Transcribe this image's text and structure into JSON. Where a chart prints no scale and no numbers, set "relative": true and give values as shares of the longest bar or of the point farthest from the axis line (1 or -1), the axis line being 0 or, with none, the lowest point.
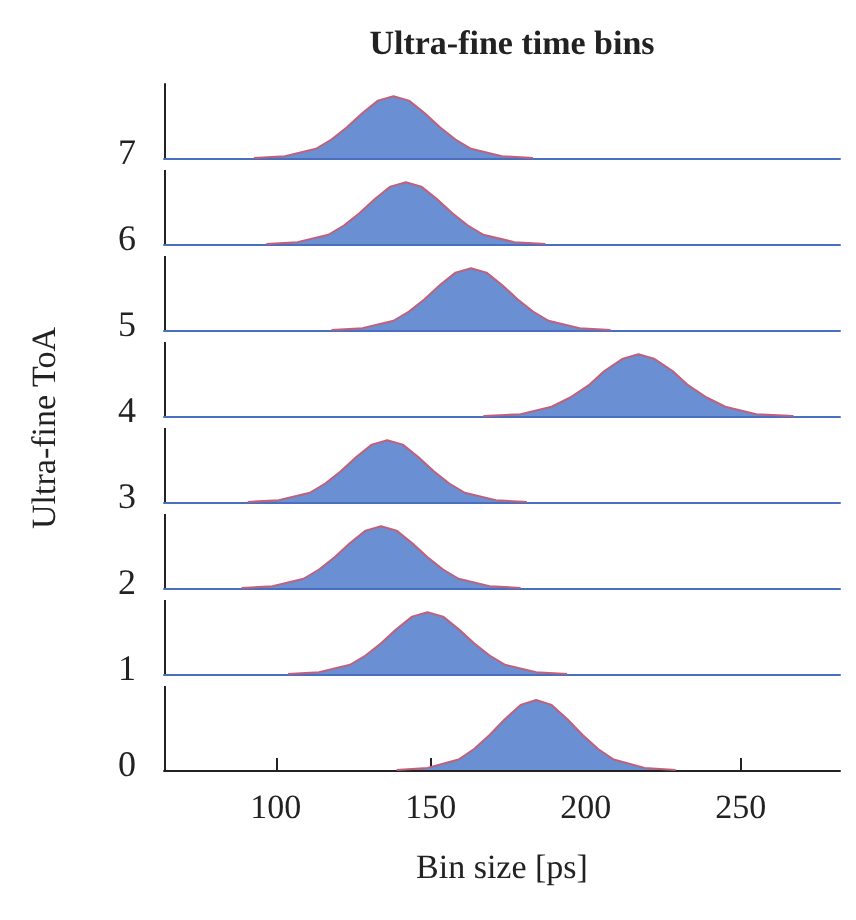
{
  "chart_data": [
    {
      "type": "area",
      "title": "Ultra-fine time bins",
      "ylabel": "7",
      "annotations": [
        "Ultra-fine ToA"
      ],
      "relative": true,
      "xlim": [
        64,
        282
      ],
      "tick_labels": false,
      "color": "#6a8fd3",
      "x": [
        93,
        103,
        113,
        118,
        123,
        128,
        133,
        138,
        143,
        148,
        153,
        158,
        163,
        173,
        183
      ],
      "values": [
        0,
        0.03,
        0.15,
        0.3,
        0.5,
        0.73,
        0.93,
        1,
        0.93,
        0.73,
        0.5,
        0.3,
        0.15,
        0.03,
        0
      ]
    },
    {
      "type": "area",
      "ylabel": "6",
      "relative": true,
      "xlim": [
        64,
        282
      ],
      "tick_labels": false,
      "color": "#6a8fd3",
      "x": [
        97,
        107,
        117,
        122,
        127,
        132,
        137,
        142,
        147,
        152,
        157,
        162,
        167,
        177,
        187
      ],
      "values": [
        0,
        0.03,
        0.15,
        0.3,
        0.5,
        0.73,
        0.93,
        1,
        0.93,
        0.73,
        0.5,
        0.3,
        0.15,
        0.03,
        0
      ]
    },
    {
      "type": "area",
      "ylabel": "5",
      "relative": true,
      "xlim": [
        64,
        282
      ],
      "tick_labels": false,
      "color": "#6a8fd3",
      "x": [
        118,
        128,
        138,
        143,
        148,
        153,
        158,
        163,
        168,
        173,
        178,
        183,
        188,
        198,
        208
      ],
      "values": [
        0,
        0.03,
        0.15,
        0.3,
        0.5,
        0.73,
        0.93,
        1,
        0.93,
        0.73,
        0.5,
        0.3,
        0.15,
        0.03,
        0
      ]
    },
    {
      "type": "area",
      "ylabel": "4",
      "relative": true,
      "xlim": [
        64,
        282
      ],
      "tick_labels": false,
      "color": "#6a8fd3",
      "x": [
        167,
        179,
        189,
        195,
        201,
        206,
        212,
        217,
        222,
        228,
        233,
        239,
        245,
        255,
        267
      ],
      "values": [
        0,
        0.03,
        0.15,
        0.3,
        0.5,
        0.73,
        0.93,
        1,
        0.93,
        0.73,
        0.5,
        0.3,
        0.15,
        0.03,
        0
      ]
    },
    {
      "type": "area",
      "ylabel": "3",
      "relative": true,
      "xlim": [
        64,
        282
      ],
      "tick_labels": false,
      "color": "#6a8fd3",
      "x": [
        91,
        101,
        111,
        116,
        121,
        126,
        131,
        136,
        141,
        146,
        151,
        156,
        161,
        171,
        181
      ],
      "values": [
        0,
        0.03,
        0.15,
        0.3,
        0.5,
        0.73,
        0.93,
        1,
        0.93,
        0.73,
        0.5,
        0.3,
        0.15,
        0.03,
        0
      ]
    },
    {
      "type": "area",
      "ylabel": "2",
      "relative": true,
      "xlim": [
        64,
        282
      ],
      "tick_labels": false,
      "color": "#6a8fd3",
      "x": [
        89,
        99,
        109,
        114,
        119,
        124,
        129,
        134,
        139,
        144,
        149,
        154,
        159,
        169,
        179
      ],
      "values": [
        0,
        0.03,
        0.15,
        0.3,
        0.5,
        0.73,
        0.93,
        1,
        0.93,
        0.73,
        0.5,
        0.3,
        0.15,
        0.03,
        0
      ]
    },
    {
      "type": "area",
      "ylabel": "1",
      "relative": true,
      "xlim": [
        64,
        282
      ],
      "tick_labels": false,
      "color": "#6a8fd3",
      "x": [
        104,
        114,
        124,
        129,
        134,
        139,
        144,
        149,
        154,
        159,
        164,
        169,
        174,
        184,
        194
      ],
      "values": [
        0,
        0.03,
        0.15,
        0.3,
        0.5,
        0.73,
        0.93,
        1,
        0.93,
        0.73,
        0.5,
        0.3,
        0.15,
        0.03,
        0
      ]
    },
    {
      "type": "area",
      "ylabel": "0",
      "xlabel": "Bin size [ps]",
      "relative": true,
      "xlim": [
        64,
        282
      ],
      "xticks": [
        100,
        150,
        200,
        250
      ],
      "tick_labels": "x",
      "color": "#6a8fd3",
      "x": [
        139,
        149,
        159,
        164,
        169,
        174,
        179,
        184,
        189,
        194,
        199,
        204,
        209,
        219,
        229
      ],
      "values": [
        0,
        0.03,
        0.15,
        0.3,
        0.5,
        0.73,
        0.93,
        1,
        0.93,
        0.73,
        0.5,
        0.3,
        0.15,
        0.03,
        0
      ]
    }
  ]
}
